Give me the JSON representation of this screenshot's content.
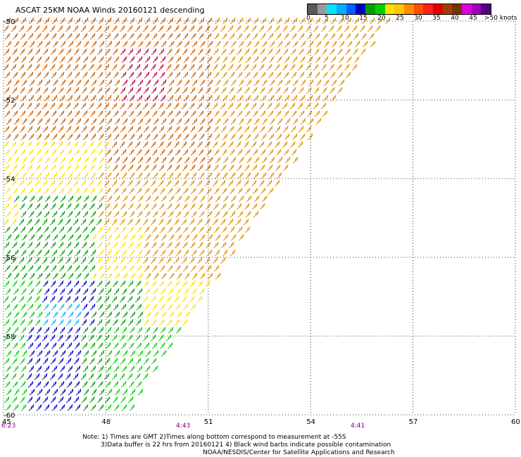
{
  "title": "ASCAT 25KM NOAA Winds 20160121 descending",
  "colorbar": {
    "colors": [
      "#5a5a5a",
      "#9a9a9a",
      "#00e5ff",
      "#00b0ff",
      "#0060ff",
      "#0000c8",
      "#00a000",
      "#00d000",
      "#ffe000",
      "#ffc800",
      "#ff8c00",
      "#ff5000",
      "#ff2020",
      "#e00000",
      "#a04000",
      "#7a3000",
      "#e000e0",
      "#a000c0",
      "#500080"
    ],
    "ticks": [
      "0",
      "5",
      "10",
      "15",
      "20",
      "25",
      "30",
      "35",
      "40",
      "45"
    ],
    "unit_label": ">50 knots"
  },
  "axes": {
    "lon_labels": [
      "45",
      "48",
      "51",
      "54",
      "57",
      "60"
    ],
    "lat_labels": [
      "-50",
      "-52",
      "-54",
      "-56",
      "-58",
      "-60"
    ],
    "lon_range": [
      45,
      60
    ],
    "lat_range": [
      -60,
      -50
    ],
    "grid": "dotted"
  },
  "time_labels": [
    "6:23",
    "4:43",
    "4:41"
  ],
  "notes": {
    "line1": "Note: 1) Times are GMT  2)Times along bottom correspond to measurement at -55S",
    "line2": "3)Data buffer is 22 hrs from 20160121  4) Black wind barbs indicate possible contamination",
    "line3": "NOAA/NESDIS/Center for Satellite Applications and Research"
  },
  "wind_field": {
    "swath_edge_note": "",
    "region_colors": {
      "north_west": "#d06000",
      "north_core": "#c00040",
      "middle_east": "#e09000",
      "middle_west": "#ffe000",
      "green_band": "#00a000",
      "south_west": "#0000c8",
      "cyan_patch": "#00b0ff",
      "light_green": "#00d000"
    }
  }
}
